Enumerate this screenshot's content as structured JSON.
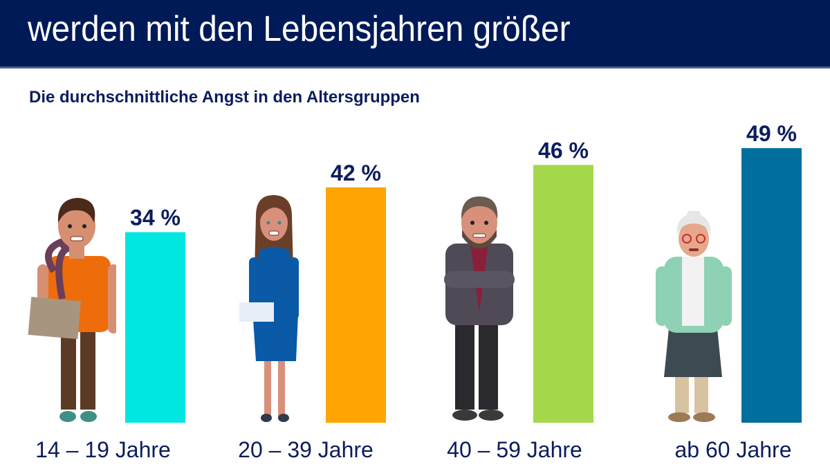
{
  "header": {
    "title": "werden mit den Lebensjahren größer"
  },
  "subtitle": "Die durchschnittliche Angst in den Altersgruppen",
  "chart_data": {
    "type": "bar",
    "title": "Die durchschnittliche Angst in den Altersgruppen",
    "categories": [
      "14 – 19 Jahre",
      "20 – 39 Jahre",
      "40 – 59 Jahre",
      "ab 60 Jahre"
    ],
    "values": [
      34,
      42,
      46,
      49
    ],
    "value_labels": [
      "34 %",
      "42 %",
      "46 %",
      "49 %"
    ],
    "unit": "%",
    "ylim": [
      0,
      100
    ],
    "grid": false,
    "colors": [
      "#00e6e1",
      "#ffa400",
      "#a5d84b",
      "#006f9e"
    ],
    "figures": [
      "teenage-boy",
      "young-woman",
      "middle-aged-man",
      "elderly-woman"
    ]
  }
}
